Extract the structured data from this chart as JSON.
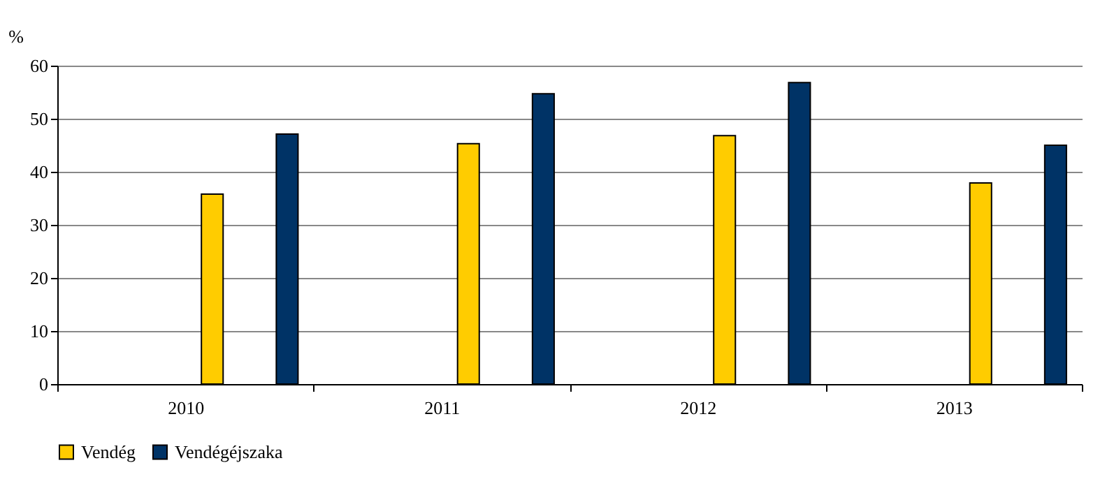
{
  "chart_data": {
    "type": "bar",
    "ylabel": "%",
    "categories": [
      "2010",
      "2011",
      "2012",
      "2013"
    ],
    "series": [
      {
        "name": "Vendég",
        "color": "#ffcc00",
        "values": [
          35.8,
          45.3,
          46.8,
          37.9
        ]
      },
      {
        "name": "Vendégéjszaka",
        "color": "#003366",
        "values": [
          47.1,
          54.7,
          56.8,
          45.0
        ]
      }
    ],
    "ylim": [
      0,
      60
    ],
    "yticks": [
      0,
      10,
      20,
      30,
      40,
      50,
      60
    ],
    "grid": "y",
    "legend": "bottom"
  }
}
